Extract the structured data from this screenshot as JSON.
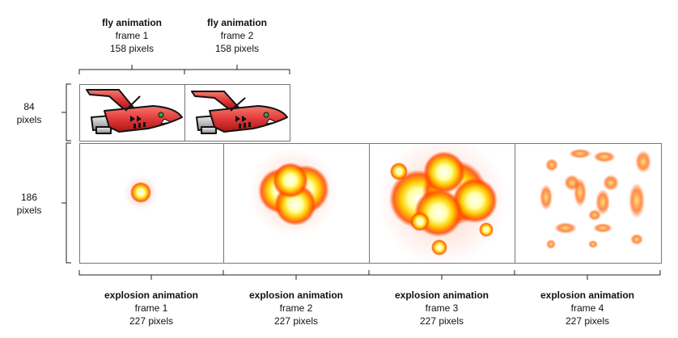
{
  "fly": {
    "title": "fly animation",
    "frames": [
      {
        "label": "frame 1",
        "size": "158 pixels"
      },
      {
        "label": "frame 2",
        "size": "158 pixels"
      }
    ]
  },
  "explosion": {
    "title": "explosion animation",
    "frames": [
      {
        "label": "frame 1",
        "size": "227 pixels"
      },
      {
        "label": "frame 2",
        "size": "227 pixels"
      },
      {
        "label": "frame 3",
        "size": "227 pixels"
      },
      {
        "label": "frame 4",
        "size": "227 pixels"
      }
    ]
  },
  "heights": {
    "fly": {
      "value": "84",
      "unit": "pixels"
    },
    "explosion": {
      "value": "186",
      "unit": "pixels"
    }
  },
  "colors": {
    "ship_body": "#e23a3a",
    "ship_outline": "#111111",
    "explosion_core": "#ffffe0",
    "explosion_mid": "#ffd400",
    "explosion_outer": "#ff3b00"
  }
}
